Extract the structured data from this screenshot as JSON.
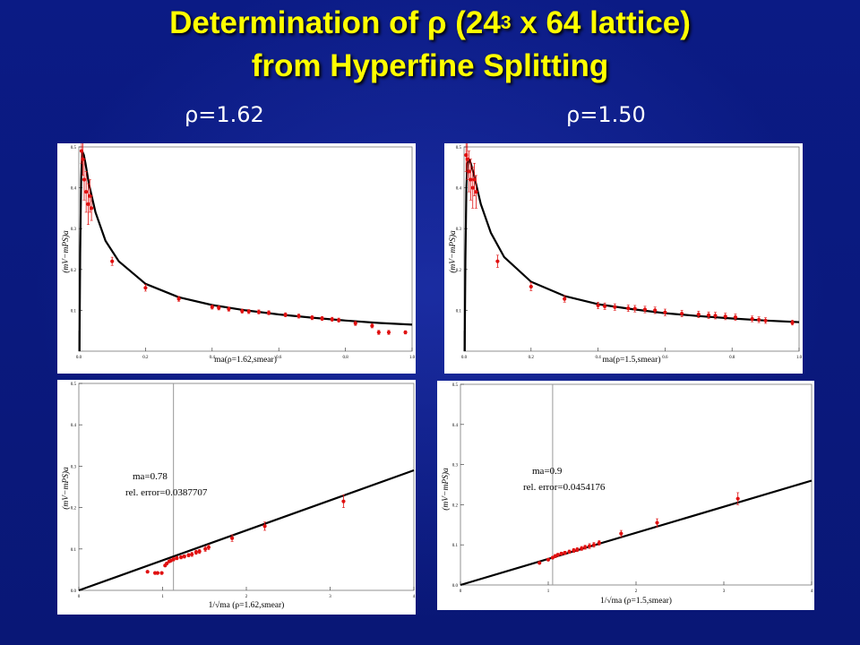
{
  "slide": {
    "title_prefix": "Determination of ρ (24",
    "title_sup": "3",
    "title_suffix": " x 64 lattice)",
    "title_line2": "from Hyperfine Splitting",
    "left_heading": "ρ=1.62",
    "right_heading": "ρ=1.50"
  },
  "colors": {
    "background": "#0a1a80",
    "title": "#ffff00",
    "data": "#e01010",
    "fit": "#000000"
  },
  "chart_data": [
    {
      "id": "p1",
      "type": "scatter",
      "xlabel": "ma(ρ=1.62,smear)",
      "ylabel": "(mV−mPS)a",
      "xlim": [
        0,
        1.0
      ],
      "ylim": [
        0,
        0.5
      ],
      "xticks": [
        "0.0",
        "0.2",
        "0.4",
        "0.6",
        "0.8",
        "1.0"
      ],
      "yticks": [
        "0.1",
        "0.2",
        "0.3",
        "0.4",
        "0.5"
      ],
      "fit_curve": [
        [
          0.002,
          0.0
        ],
        [
          0.004,
          0.24
        ],
        [
          0.007,
          0.42
        ],
        [
          0.01,
          0.49
        ],
        [
          0.015,
          0.48
        ],
        [
          0.02,
          0.46
        ],
        [
          0.03,
          0.41
        ],
        [
          0.05,
          0.34
        ],
        [
          0.08,
          0.27
        ],
        [
          0.12,
          0.22
        ],
        [
          0.2,
          0.165
        ],
        [
          0.3,
          0.132
        ],
        [
          0.4,
          0.113
        ],
        [
          0.5,
          0.1
        ],
        [
          0.6,
          0.09
        ],
        [
          0.7,
          0.082
        ],
        [
          0.8,
          0.075
        ],
        [
          0.9,
          0.069
        ],
        [
          1.0,
          0.065
        ]
      ],
      "points": [
        {
          "x": 0.008,
          "y": 0.49,
          "e": 0.03
        },
        {
          "x": 0.012,
          "y": 0.47,
          "e": 0.04
        },
        {
          "x": 0.016,
          "y": 0.42,
          "e": 0.05
        },
        {
          "x": 0.022,
          "y": 0.39,
          "e": 0.05
        },
        {
          "x": 0.028,
          "y": 0.36,
          "e": 0.05
        },
        {
          "x": 0.033,
          "y": 0.38,
          "e": 0.04
        },
        {
          "x": 0.038,
          "y": 0.35,
          "e": 0.03
        },
        {
          "x": 0.1,
          "y": 0.22,
          "e": 0.01
        },
        {
          "x": 0.2,
          "y": 0.155,
          "e": 0.008
        },
        {
          "x": 0.3,
          "y": 0.128,
          "e": 0.006
        },
        {
          "x": 0.4,
          "y": 0.108,
          "e": 0.005
        },
        {
          "x": 0.42,
          "y": 0.106,
          "e": 0.005
        },
        {
          "x": 0.45,
          "y": 0.103,
          "e": 0.005
        },
        {
          "x": 0.49,
          "y": 0.098,
          "e": 0.005
        },
        {
          "x": 0.51,
          "y": 0.097,
          "e": 0.005
        },
        {
          "x": 0.54,
          "y": 0.096,
          "e": 0.005
        },
        {
          "x": 0.57,
          "y": 0.094,
          "e": 0.005
        },
        {
          "x": 0.62,
          "y": 0.089,
          "e": 0.005
        },
        {
          "x": 0.66,
          "y": 0.086,
          "e": 0.005
        },
        {
          "x": 0.7,
          "y": 0.082,
          "e": 0.005
        },
        {
          "x": 0.73,
          "y": 0.08,
          "e": 0.005
        },
        {
          "x": 0.76,
          "y": 0.078,
          "e": 0.005
        },
        {
          "x": 0.78,
          "y": 0.076,
          "e": 0.005
        },
        {
          "x": 0.83,
          "y": 0.068,
          "e": 0.005
        },
        {
          "x": 0.88,
          "y": 0.062,
          "e": 0.005
        },
        {
          "x": 0.9,
          "y": 0.046,
          "e": 0.005
        },
        {
          "x": 0.93,
          "y": 0.046,
          "e": 0.005
        },
        {
          "x": 0.98,
          "y": 0.046,
          "e": 0.004
        }
      ]
    },
    {
      "id": "p2",
      "type": "scatter",
      "xlabel": "ma(ρ=1.5,smear)",
      "ylabel": "(mV−mPS)a",
      "xlim": [
        0,
        1.0
      ],
      "ylim": [
        0,
        0.5
      ],
      "xticks": [
        "0.0",
        "0.2",
        "0.4",
        "0.6",
        "0.8",
        "1.0"
      ],
      "yticks": [
        "0.1",
        "0.2",
        "0.3",
        "0.4",
        "0.5"
      ],
      "fit_curve": [
        [
          0.002,
          0.0
        ],
        [
          0.004,
          0.22
        ],
        [
          0.007,
          0.4
        ],
        [
          0.01,
          0.46
        ],
        [
          0.015,
          0.47
        ],
        [
          0.02,
          0.46
        ],
        [
          0.03,
          0.43
        ],
        [
          0.05,
          0.36
        ],
        [
          0.08,
          0.29
        ],
        [
          0.12,
          0.23
        ],
        [
          0.2,
          0.17
        ],
        [
          0.3,
          0.135
        ],
        [
          0.4,
          0.115
        ],
        [
          0.5,
          0.103
        ],
        [
          0.6,
          0.093
        ],
        [
          0.7,
          0.086
        ],
        [
          0.8,
          0.08
        ],
        [
          0.9,
          0.075
        ],
        [
          1.0,
          0.071
        ]
      ],
      "points": [
        {
          "x": 0.006,
          "y": 0.48,
          "e": 0.04
        },
        {
          "x": 0.01,
          "y": 0.47,
          "e": 0.05
        },
        {
          "x": 0.015,
          "y": 0.44,
          "e": 0.05
        },
        {
          "x": 0.02,
          "y": 0.42,
          "e": 0.05
        },
        {
          "x": 0.026,
          "y": 0.4,
          "e": 0.05
        },
        {
          "x": 0.031,
          "y": 0.42,
          "e": 0.04
        },
        {
          "x": 0.036,
          "y": 0.39,
          "e": 0.04
        },
        {
          "x": 0.1,
          "y": 0.22,
          "e": 0.015
        },
        {
          "x": 0.2,
          "y": 0.158,
          "e": 0.01
        },
        {
          "x": 0.3,
          "y": 0.128,
          "e": 0.008
        },
        {
          "x": 0.4,
          "y": 0.112,
          "e": 0.008
        },
        {
          "x": 0.42,
          "y": 0.11,
          "e": 0.008
        },
        {
          "x": 0.45,
          "y": 0.108,
          "e": 0.008
        },
        {
          "x": 0.49,
          "y": 0.105,
          "e": 0.008
        },
        {
          "x": 0.51,
          "y": 0.104,
          "e": 0.008
        },
        {
          "x": 0.54,
          "y": 0.102,
          "e": 0.008
        },
        {
          "x": 0.57,
          "y": 0.1,
          "e": 0.008
        },
        {
          "x": 0.6,
          "y": 0.095,
          "e": 0.008
        },
        {
          "x": 0.65,
          "y": 0.092,
          "e": 0.008
        },
        {
          "x": 0.7,
          "y": 0.09,
          "e": 0.008
        },
        {
          "x": 0.73,
          "y": 0.088,
          "e": 0.008
        },
        {
          "x": 0.75,
          "y": 0.087,
          "e": 0.008
        },
        {
          "x": 0.78,
          "y": 0.085,
          "e": 0.008
        },
        {
          "x": 0.81,
          "y": 0.083,
          "e": 0.008
        },
        {
          "x": 0.86,
          "y": 0.079,
          "e": 0.007
        },
        {
          "x": 0.88,
          "y": 0.077,
          "e": 0.007
        },
        {
          "x": 0.9,
          "y": 0.075,
          "e": 0.007
        },
        {
          "x": 0.98,
          "y": 0.07,
          "e": 0.006
        }
      ]
    },
    {
      "id": "p3",
      "type": "scatter",
      "xlabel": "1/√ma (ρ=1.62,smear)",
      "ylabel": "(mV−mPS)a",
      "xlim": [
        0,
        4
      ],
      "ylim": [
        0,
        0.5
      ],
      "xticks": [
        "0",
        "1",
        "2",
        "3",
        "4"
      ],
      "yticks": [
        "0.0",
        "0.1",
        "0.2",
        "0.3",
        "0.4",
        "0.5"
      ],
      "vline": 1.13,
      "annotation": [
        "ma=0.78",
        "rel. error=0.0387707"
      ],
      "fit_line": [
        [
          0,
          0.0
        ],
        [
          4,
          0.29
        ]
      ],
      "points": [
        {
          "x": 0.82,
          "y": 0.045,
          "e": 0.002
        },
        {
          "x": 0.91,
          "y": 0.042,
          "e": 0.002
        },
        {
          "x": 0.94,
          "y": 0.042,
          "e": 0.002
        },
        {
          "x": 0.99,
          "y": 0.042,
          "e": 0.002
        },
        {
          "x": 1.03,
          "y": 0.06,
          "e": 0.003
        },
        {
          "x": 1.05,
          "y": 0.065,
          "e": 0.003
        },
        {
          "x": 1.08,
          "y": 0.07,
          "e": 0.003
        },
        {
          "x": 1.1,
          "y": 0.072,
          "e": 0.003
        },
        {
          "x": 1.13,
          "y": 0.075,
          "e": 0.004
        },
        {
          "x": 1.17,
          "y": 0.078,
          "e": 0.004
        },
        {
          "x": 1.22,
          "y": 0.08,
          "e": 0.004
        },
        {
          "x": 1.26,
          "y": 0.082,
          "e": 0.004
        },
        {
          "x": 1.31,
          "y": 0.085,
          "e": 0.004
        },
        {
          "x": 1.35,
          "y": 0.087,
          "e": 0.005
        },
        {
          "x": 1.4,
          "y": 0.092,
          "e": 0.005
        },
        {
          "x": 1.44,
          "y": 0.094,
          "e": 0.005
        },
        {
          "x": 1.51,
          "y": 0.1,
          "e": 0.006
        },
        {
          "x": 1.55,
          "y": 0.104,
          "e": 0.006
        },
        {
          "x": 1.83,
          "y": 0.126,
          "e": 0.008
        },
        {
          "x": 2.22,
          "y": 0.155,
          "e": 0.01
        },
        {
          "x": 3.16,
          "y": 0.215,
          "e": 0.015
        }
      ]
    },
    {
      "id": "p4",
      "type": "scatter",
      "xlabel": "1/√ma (ρ=1.5,smear)",
      "ylabel": "(mV−mPS)a",
      "xlim": [
        0,
        4
      ],
      "ylim": [
        0,
        0.5
      ],
      "xticks": [
        "0",
        "1",
        "2",
        "3",
        "4"
      ],
      "yticks": [
        "0.0",
        "0.1",
        "0.2",
        "0.3",
        "0.4",
        "0.5"
      ],
      "vline": 1.05,
      "annotation": [
        "ma=0.9",
        "rel. error=0.0454176"
      ],
      "fit_line": [
        [
          0,
          0.0
        ],
        [
          4,
          0.26
        ]
      ],
      "points": [
        {
          "x": 0.9,
          "y": 0.055,
          "e": 0.003
        },
        {
          "x": 1.0,
          "y": 0.063,
          "e": 0.003
        },
        {
          "x": 1.05,
          "y": 0.068,
          "e": 0.003
        },
        {
          "x": 1.08,
          "y": 0.072,
          "e": 0.004
        },
        {
          "x": 1.11,
          "y": 0.075,
          "e": 0.004
        },
        {
          "x": 1.15,
          "y": 0.078,
          "e": 0.004
        },
        {
          "x": 1.19,
          "y": 0.08,
          "e": 0.004
        },
        {
          "x": 1.24,
          "y": 0.083,
          "e": 0.004
        },
        {
          "x": 1.29,
          "y": 0.086,
          "e": 0.005
        },
        {
          "x": 1.33,
          "y": 0.088,
          "e": 0.005
        },
        {
          "x": 1.38,
          "y": 0.091,
          "e": 0.005
        },
        {
          "x": 1.42,
          "y": 0.094,
          "e": 0.005
        },
        {
          "x": 1.47,
          "y": 0.097,
          "e": 0.006
        },
        {
          "x": 1.52,
          "y": 0.1,
          "e": 0.006
        },
        {
          "x": 1.58,
          "y": 0.105,
          "e": 0.006
        },
        {
          "x": 1.83,
          "y": 0.128,
          "e": 0.008
        },
        {
          "x": 2.24,
          "y": 0.155,
          "e": 0.01
        },
        {
          "x": 3.16,
          "y": 0.215,
          "e": 0.015
        }
      ]
    }
  ]
}
